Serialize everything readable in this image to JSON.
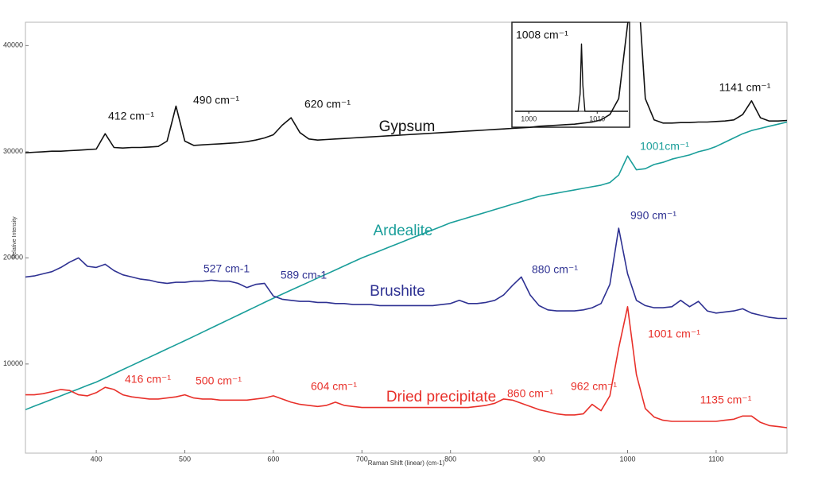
{
  "chart_data": [
    {
      "type": "line",
      "x_label": "Raman Shift (linear) (cm-1)",
      "y_label": "Relative Intensity",
      "xlim": [
        320,
        1180
      ],
      "ylim": [
        1600,
        42200
      ],
      "xticks": [
        400,
        500,
        600,
        700,
        800,
        900,
        1000,
        1100
      ],
      "yticks": [
        10000,
        20000,
        30000,
        40000
      ],
      "grid": false,
      "x": [
        320,
        330,
        340,
        350,
        360,
        370,
        380,
        390,
        400,
        410,
        420,
        430,
        440,
        450,
        460,
        470,
        480,
        490,
        500,
        510,
        520,
        530,
        540,
        550,
        560,
        570,
        580,
        590,
        600,
        610,
        620,
        630,
        640,
        650,
        660,
        670,
        680,
        690,
        700,
        710,
        720,
        730,
        740,
        750,
        760,
        770,
        780,
        790,
        800,
        810,
        820,
        830,
        840,
        850,
        860,
        870,
        880,
        890,
        900,
        910,
        920,
        930,
        940,
        950,
        960,
        970,
        980,
        990,
        1000,
        1010,
        1020,
        1030,
        1040,
        1050,
        1060,
        1070,
        1080,
        1090,
        1100,
        1110,
        1120,
        1130,
        1140,
        1150,
        1160,
        1170,
        1180
      ],
      "series": [
        {
          "name": "Gypsum",
          "color": "#111111",
          "values": [
            29900,
            29950,
            30000,
            30050,
            30050,
            30100,
            30150,
            30200,
            30250,
            31700,
            30400,
            30350,
            30400,
            30400,
            30450,
            30500,
            31000,
            34300,
            31000,
            30600,
            30650,
            30700,
            30750,
            30800,
            30850,
            30950,
            31100,
            31300,
            31600,
            32500,
            33200,
            31800,
            31200,
            31100,
            31150,
            31200,
            31250,
            31300,
            31350,
            31400,
            31450,
            31500,
            31550,
            31600,
            31650,
            31700,
            31750,
            31800,
            31850,
            31900,
            31950,
            32000,
            32050,
            32100,
            32150,
            32200,
            32250,
            32300,
            32400,
            32450,
            32500,
            32550,
            32600,
            32700,
            32800,
            33000,
            33500,
            35000,
            42000,
            48000,
            35000,
            33000,
            32700,
            32700,
            32750,
            32750,
            32800,
            32800,
            32850,
            32900,
            33000,
            33500,
            34800,
            33200,
            32900,
            32900,
            32950
          ]
        },
        {
          "name": "Ardealite",
          "color": "#1a9e9a",
          "values": [
            5700,
            6030,
            6350,
            6680,
            7000,
            7330,
            7650,
            7980,
            8300,
            8690,
            9080,
            9470,
            9860,
            10250,
            10640,
            11030,
            11420,
            11810,
            12200,
            12600,
            13000,
            13400,
            13800,
            14200,
            14600,
            15000,
            15400,
            15800,
            16200,
            16580,
            16960,
            17340,
            17720,
            18100,
            18480,
            18860,
            19240,
            19620,
            20000,
            20330,
            20660,
            20990,
            21320,
            21650,
            21980,
            22310,
            22640,
            22970,
            23300,
            23550,
            23800,
            24050,
            24300,
            24550,
            24800,
            25050,
            25300,
            25550,
            25800,
            25950,
            26100,
            26250,
            26400,
            26550,
            26700,
            26850,
            27100,
            27800,
            29600,
            28300,
            28400,
            28800,
            29000,
            29300,
            29500,
            29700,
            30000,
            30200,
            30500,
            30900,
            31300,
            31700,
            32000,
            32200,
            32400,
            32600,
            32800
          ]
        },
        {
          "name": "Brushite",
          "color": "#2e3192",
          "values": [
            18200,
            18300,
            18500,
            18700,
            19100,
            19600,
            20000,
            19200,
            19100,
            19400,
            18800,
            18400,
            18200,
            18000,
            17900,
            17700,
            17600,
            17700,
            17700,
            17800,
            17800,
            17900,
            17800,
            17800,
            17600,
            17200,
            17500,
            17600,
            16400,
            16100,
            16000,
            15900,
            15900,
            15800,
            15800,
            15700,
            15700,
            15600,
            15600,
            15600,
            15500,
            15500,
            15500,
            15500,
            15500,
            15500,
            15500,
            15600,
            15700,
            16000,
            15700,
            15700,
            15800,
            16000,
            16500,
            17400,
            18200,
            16500,
            15500,
            15100,
            15000,
            15000,
            15000,
            15100,
            15300,
            15700,
            17500,
            22800,
            18500,
            16000,
            15500,
            15300,
            15300,
            15400,
            16000,
            15400,
            15900,
            15000,
            14800,
            14900,
            15000,
            15200,
            14800,
            14600,
            14400,
            14300,
            14300
          ]
        },
        {
          "name": "Dried precipitate",
          "color": "#e8302a",
          "values": [
            7100,
            7100,
            7200,
            7400,
            7600,
            7500,
            7100,
            7000,
            7300,
            7800,
            7600,
            7100,
            6900,
            6800,
            6700,
            6700,
            6800,
            6900,
            7100,
            6800,
            6700,
            6700,
            6600,
            6600,
            6600,
            6600,
            6700,
            6800,
            7000,
            6700,
            6400,
            6200,
            6100,
            6000,
            6100,
            6400,
            6100,
            6000,
            5900,
            5900,
            5900,
            5900,
            5900,
            5900,
            5900,
            5900,
            5900,
            5900,
            5900,
            5900,
            5900,
            6000,
            6100,
            6300,
            6700,
            6600,
            6300,
            6000,
            5700,
            5500,
            5300,
            5200,
            5200,
            5300,
            6200,
            5600,
            7000,
            11500,
            15400,
            9000,
            5800,
            5000,
            4700,
            4600,
            4600,
            4600,
            4600,
            4600,
            4600,
            4700,
            4800,
            5100,
            5100,
            4500,
            4200,
            4100,
            4000
          ]
        }
      ],
      "annotations": [
        {
          "text": "412 cm⁻¹",
          "color": "#111111"
        },
        {
          "text": "490 cm⁻¹",
          "color": "#111111"
        },
        {
          "text": "620 cm⁻¹",
          "color": "#111111"
        },
        {
          "text": "1141 cm⁻¹",
          "color": "#111111"
        },
        {
          "text": "1001cm⁻¹",
          "color": "#1a9e9a"
        },
        {
          "text": "527 cm-1",
          "color": "#2e3192"
        },
        {
          "text": "589 cm-1",
          "color": "#2e3192"
        },
        {
          "text": "880 cm⁻¹",
          "color": "#2e3192"
        },
        {
          "text": "990 cm⁻¹",
          "color": "#2e3192"
        },
        {
          "text": "416 cm⁻¹",
          "color": "#e8302a"
        },
        {
          "text": "500 cm⁻¹",
          "color": "#e8302a"
        },
        {
          "text": "604 cm⁻¹",
          "color": "#e8302a"
        },
        {
          "text": "860 cm⁻¹",
          "color": "#e8302a"
        },
        {
          "text": "962 cm⁻¹",
          "color": "#e8302a"
        },
        {
          "text": "1001 cm⁻¹",
          "color": "#e8302a"
        },
        {
          "text": "1135 cm⁻¹",
          "color": "#e8302a"
        }
      ]
    },
    {
      "type": "line",
      "title": "1008 cm⁻¹",
      "xlim": [
        998,
        1014.5
      ],
      "ylim": [
        0,
        1
      ],
      "xticks": [
        1000,
        1010
      ],
      "x": [
        998,
        1007.2,
        1007.5,
        1007.7,
        1007.9,
        1008.2,
        1014.5
      ],
      "values": [
        0,
        0,
        0.2,
        0.77,
        0.3,
        0,
        0
      ],
      "color": "#111111"
    }
  ]
}
